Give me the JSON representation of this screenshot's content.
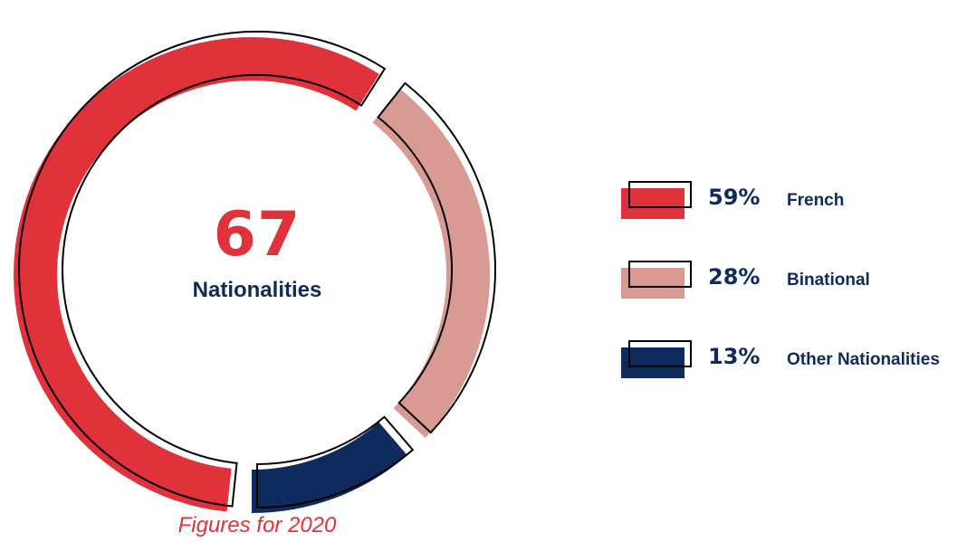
{
  "center": {
    "number": "67",
    "label": "Nationalities"
  },
  "caption": "Figures for 2020",
  "colors": {
    "french": "#e0323a",
    "binational": "#d99a94",
    "other": "#0f2a5c",
    "outline": "#000000"
  },
  "chart_data": {
    "type": "pie",
    "categories": [
      "French",
      "Binational",
      "Other Nationalities"
    ],
    "values": [
      59,
      28,
      13
    ],
    "value_labels": [
      "59%",
      "28%",
      "13%"
    ],
    "title": "",
    "legend_position": "right"
  },
  "legend": [
    {
      "pct": "59%",
      "name": "French",
      "color": "#e0323a"
    },
    {
      "pct": "28%",
      "name": "Binational",
      "color": "#d99a94"
    },
    {
      "pct": "13%",
      "name": "Other Nationalities",
      "color": "#0f2a5c"
    }
  ]
}
